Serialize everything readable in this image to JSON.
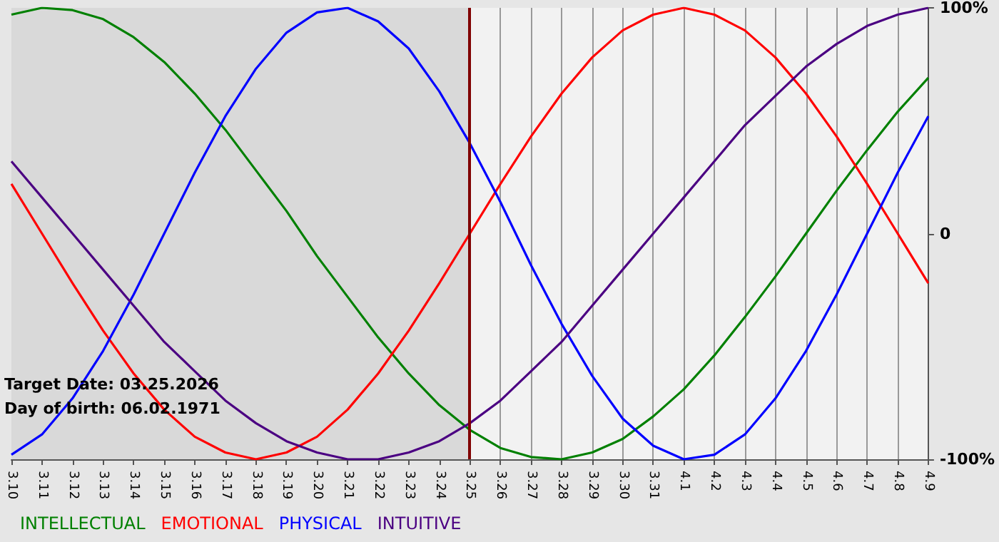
{
  "chart_data": {
    "type": "line",
    "categories": [
      "3.10",
      "3.11",
      "3.12",
      "3.13",
      "3.14",
      "3.15",
      "3.16",
      "3.17",
      "3.18",
      "3.19",
      "3.20",
      "3.21",
      "3.22",
      "3.23",
      "3.24",
      "3.25",
      "3.26",
      "3.27",
      "3.28",
      "3.29",
      "3.30",
      "3.31",
      "4.1",
      "4.2",
      "4.3",
      "4.4",
      "4.5",
      "4.6",
      "4.7",
      "4.8",
      "4.9"
    ],
    "series": [
      {
        "name": "INTELLECTUAL",
        "color": "#008000",
        "values": [
          97,
          100,
          99,
          95,
          87,
          76,
          62,
          46,
          28,
          10,
          -10,
          -28,
          -46,
          -62,
          -76,
          -87,
          -95,
          -99,
          -100,
          -97,
          -91,
          -81,
          -69,
          -54,
          -37,
          -19,
          0,
          19,
          37,
          54,
          69
        ]
      },
      {
        "name": "EMOTIONAL",
        "color": "#ff0000",
        "values": [
          22,
          0,
          -22,
          -43,
          -62,
          -78,
          -90,
          -97,
          -100,
          -97,
          -90,
          -78,
          -62,
          -43,
          -22,
          0,
          22,
          43,
          62,
          78,
          90,
          97,
          100,
          97,
          90,
          78,
          62,
          43,
          22,
          0,
          -22
        ]
      },
      {
        "name": "PHYSICAL",
        "color": "#0000ff",
        "values": [
          -98,
          -89,
          -73,
          -52,
          -27,
          0,
          27,
          52,
          73,
          89,
          98,
          100,
          94,
          82,
          63,
          40,
          14,
          -14,
          -40,
          -63,
          -82,
          -94,
          -100,
          -98,
          -89,
          -73,
          -52,
          -27,
          0,
          27,
          52
        ]
      },
      {
        "name": "INTUITIVE",
        "color": "#4b0082",
        "values": [
          32,
          16,
          0,
          -16,
          -32,
          -48,
          -61,
          -74,
          -84,
          -92,
          -97,
          -100,
          -100,
          -97,
          -92,
          -84,
          -74,
          -61,
          -48,
          -32,
          -16,
          0,
          16,
          32,
          48,
          61,
          74,
          84,
          92,
          97,
          100
        ]
      }
    ],
    "ylim": [
      -100,
      100
    ],
    "yticks": [
      {
        "value": -100,
        "label": "-100%"
      },
      0,
      {
        "value": 100,
        "label": "100%"
      }
    ],
    "ref_lines": [
      {
        "axis": "x",
        "value": "3.25",
        "color": "#800000"
      }
    ],
    "bands": [
      {
        "axis": "x",
        "from": "3.10",
        "to": "3.25",
        "color": "#d9d9d9"
      }
    ],
    "annotations": [
      "Target Date: 03.25.2026",
      "Day of birth: 06.02.1971"
    ],
    "grid": "x",
    "legend": "bottom left",
    "marker": "none",
    "line_style": "solid"
  }
}
